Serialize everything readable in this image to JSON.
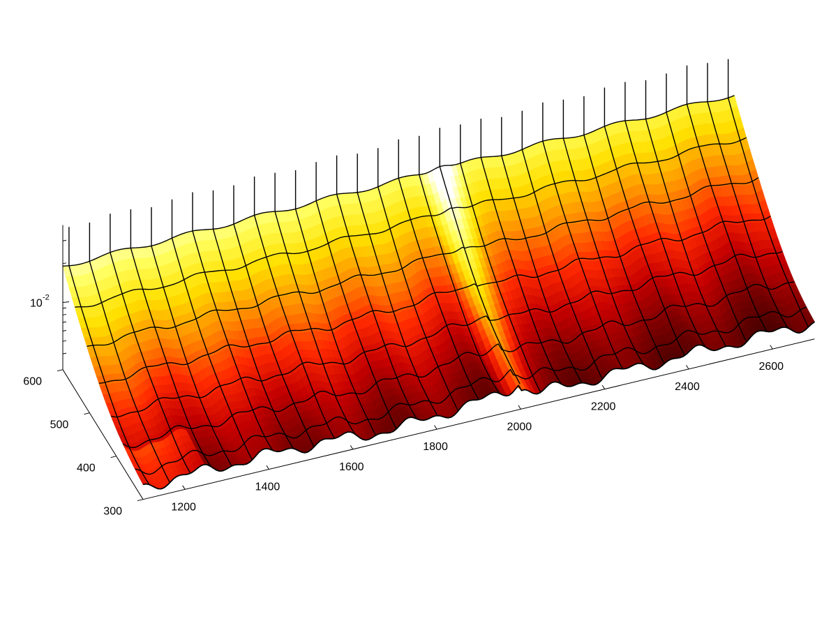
{
  "chart_data": {
    "type": "surface",
    "title": "",
    "xlabel": "",
    "ylabel": "",
    "zlabel": "",
    "colormap": "hot",
    "colormap_stops": [
      "#3a0000",
      "#7a0000",
      "#c40000",
      "#ff2a00",
      "#ff8c00",
      "#ffe000",
      "#ffff60",
      "#ffffff"
    ],
    "x_ticks": [
      1200,
      1400,
      1600,
      1800,
      2000,
      2200,
      2400,
      2600
    ],
    "x_tick_labels": [
      "1200",
      "1400",
      "1600",
      "1800",
      "2000",
      "2200",
      "2400",
      "2600"
    ],
    "xlim": [
      1100,
      2700
    ],
    "y_ticks": [
      300,
      400,
      500,
      600
    ],
    "y_tick_labels": [
      "300",
      "400",
      "500",
      "600"
    ],
    "ylim": [
      300,
      600
    ],
    "z_scale": "log",
    "z_tick_base": "10",
    "z_tick_exponent": "-2",
    "zlim_log10": [
      -2.5,
      -1.4
    ],
    "grid": false,
    "mesh": {
      "x_count": 33,
      "y_rows": [
        300,
        330,
        375,
        420,
        465,
        510,
        555,
        600
      ],
      "feature_x": 2000
    }
  }
}
